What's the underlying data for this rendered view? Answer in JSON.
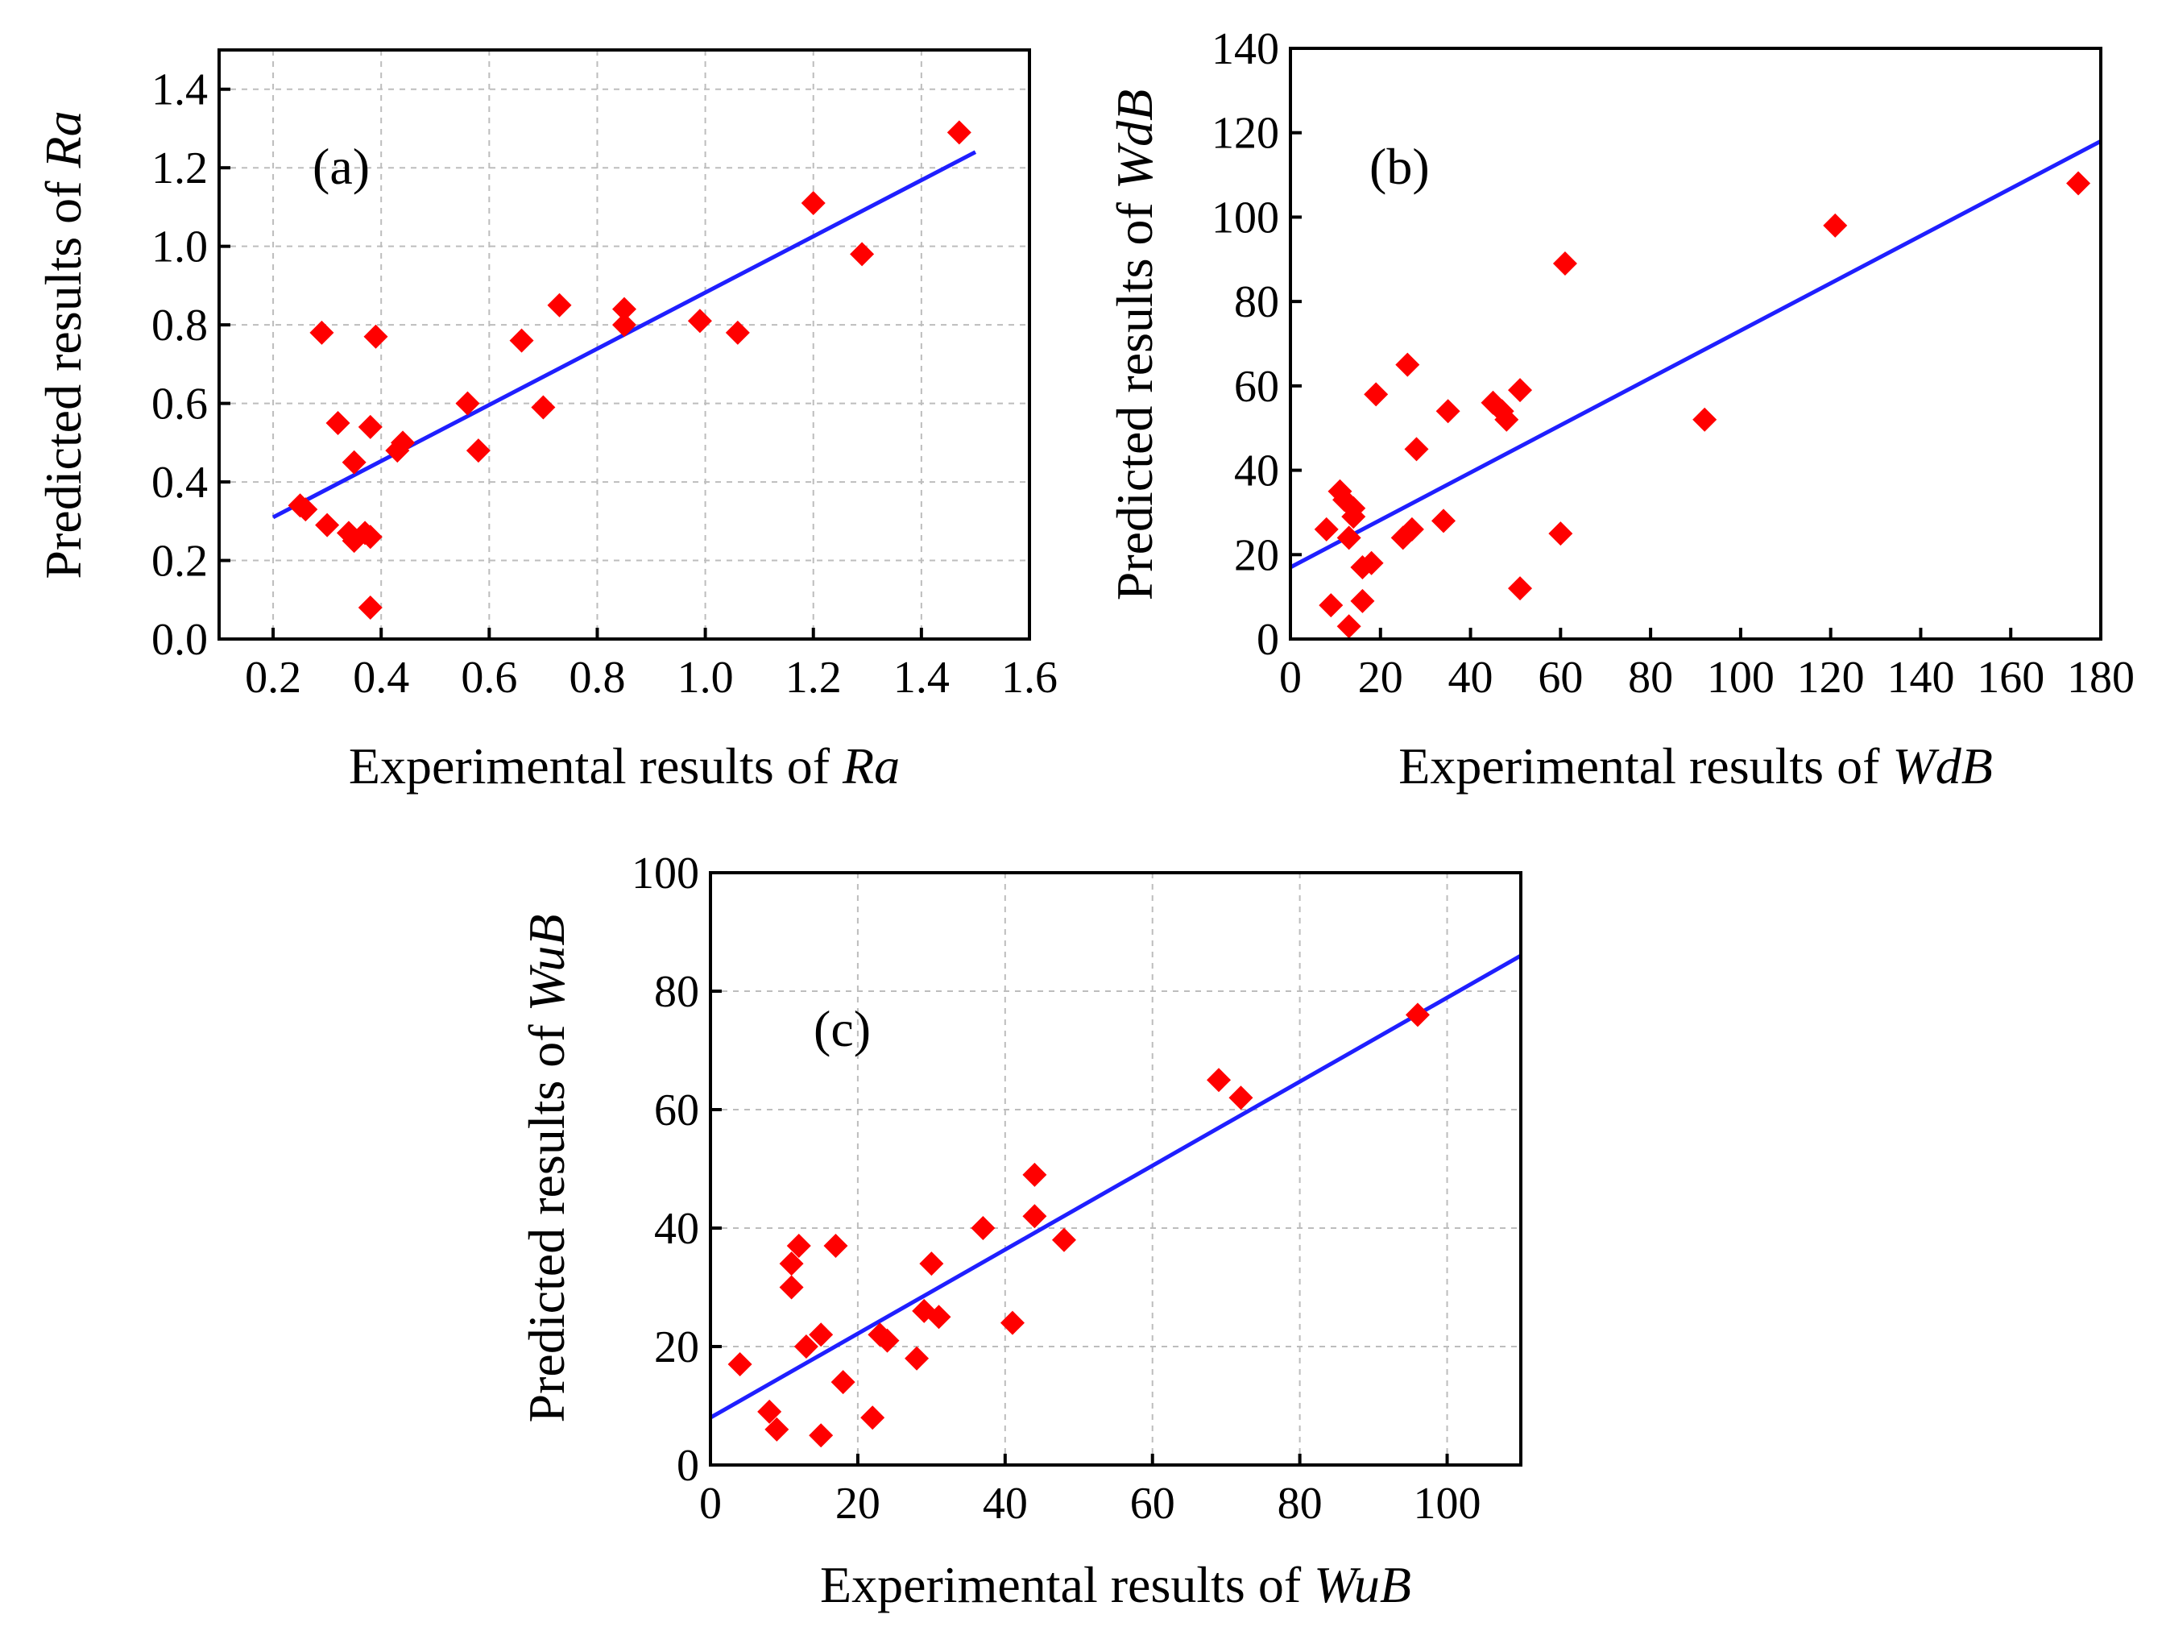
{
  "colors": {
    "marker": "#ff0000",
    "fit_line": "#1f1fff",
    "axes": "#000000",
    "grid": "#bdbdbd"
  },
  "chart_data": [
    {
      "id": "a",
      "type": "scatter",
      "panel_label": "(a)",
      "xlabel_prefix": "Experimental results of ",
      "xlabel_var": "Ra",
      "ylabel_prefix": "Predicted results of ",
      "ylabel_var": "Ra",
      "xlim": [
        0.1,
        1.6
      ],
      "ylim": [
        0.0,
        1.5
      ],
      "xticks": [
        0.2,
        0.4,
        0.6,
        0.8,
        1.0,
        1.2,
        1.4,
        1.6
      ],
      "xtick_labels": [
        "0.2",
        "0.4",
        "0.6",
        "0.8",
        "1.0",
        "1.2",
        "1.4",
        "1.6"
      ],
      "yticks": [
        0.0,
        0.2,
        0.4,
        0.6,
        0.8,
        1.0,
        1.2,
        1.4
      ],
      "ytick_labels": [
        "0.0",
        "0.2",
        "0.4",
        "0.6",
        "0.8",
        "1.0",
        "1.2",
        "1.4"
      ],
      "grid": true,
      "points": [
        [
          0.25,
          0.34
        ],
        [
          0.26,
          0.33
        ],
        [
          0.29,
          0.78
        ],
        [
          0.3,
          0.29
        ],
        [
          0.32,
          0.55
        ],
        [
          0.34,
          0.27
        ],
        [
          0.35,
          0.25
        ],
        [
          0.35,
          0.45
        ],
        [
          0.37,
          0.27
        ],
        [
          0.38,
          0.26
        ],
        [
          0.38,
          0.54
        ],
        [
          0.38,
          0.08
        ],
        [
          0.39,
          0.77
        ],
        [
          0.43,
          0.48
        ],
        [
          0.44,
          0.5
        ],
        [
          0.56,
          0.6
        ],
        [
          0.58,
          0.48
        ],
        [
          0.66,
          0.76
        ],
        [
          0.7,
          0.59
        ],
        [
          0.73,
          0.85
        ],
        [
          0.85,
          0.84
        ],
        [
          0.85,
          0.8
        ],
        [
          0.99,
          0.81
        ],
        [
          1.06,
          0.78
        ],
        [
          1.2,
          1.11
        ],
        [
          1.29,
          0.98
        ],
        [
          1.47,
          1.29
        ]
      ],
      "fit": {
        "x": [
          0.2,
          1.5
        ],
        "y": [
          0.31,
          1.24
        ]
      }
    },
    {
      "id": "b",
      "type": "scatter",
      "panel_label": "(b)",
      "xlabel_prefix": "Experimental results of ",
      "xlabel_var": "WdB",
      "ylabel_prefix": "Predicted results of ",
      "ylabel_var": "WdB",
      "xlim": [
        0,
        180
      ],
      "ylim": [
        0,
        140
      ],
      "xticks": [
        0,
        20,
        40,
        60,
        80,
        100,
        120,
        140,
        160,
        180
      ],
      "xtick_labels": [
        "0",
        "20",
        "40",
        "60",
        "80",
        "100",
        "120",
        "140",
        "160",
        "180"
      ],
      "yticks": [
        0,
        20,
        40,
        60,
        80,
        100,
        120,
        140
      ],
      "ytick_labels": [
        "0",
        "20",
        "40",
        "60",
        "80",
        "100",
        "120",
        "140"
      ],
      "grid": false,
      "points": [
        [
          8,
          26
        ],
        [
          9,
          8
        ],
        [
          11,
          35
        ],
        [
          12,
          33
        ],
        [
          13,
          3
        ],
        [
          13,
          24
        ],
        [
          14,
          29
        ],
        [
          14,
          31
        ],
        [
          16,
          9
        ],
        [
          16,
          17
        ],
        [
          18,
          18
        ],
        [
          19,
          58
        ],
        [
          25,
          24
        ],
        [
          26,
          65
        ],
        [
          27,
          26
        ],
        [
          28,
          45
        ],
        [
          34,
          28
        ],
        [
          35,
          54
        ],
        [
          45,
          56
        ],
        [
          47,
          54
        ],
        [
          48,
          52
        ],
        [
          51,
          59
        ],
        [
          51,
          12
        ],
        [
          60,
          25
        ],
        [
          61,
          89
        ],
        [
          92,
          52
        ],
        [
          121,
          98
        ],
        [
          175,
          108
        ]
      ],
      "fit": {
        "x": [
          0,
          180
        ],
        "y": [
          17,
          118
        ]
      }
    },
    {
      "id": "c",
      "type": "scatter",
      "panel_label": "(c)",
      "xlabel_prefix": "Experimental results of ",
      "xlabel_var": "WuB",
      "ylabel_prefix": "Predicted results of ",
      "ylabel_var": "WuB",
      "xlim": [
        0,
        110
      ],
      "ylim": [
        0,
        100
      ],
      "xticks": [
        0,
        20,
        40,
        60,
        80,
        100
      ],
      "xtick_labels": [
        "0",
        "20",
        "40",
        "60",
        "80",
        "100"
      ],
      "yticks": [
        0,
        20,
        40,
        60,
        80,
        100
      ],
      "ytick_labels": [
        "0",
        "20",
        "40",
        "60",
        "80",
        "100"
      ],
      "grid": true,
      "points": [
        [
          4,
          17
        ],
        [
          8,
          9
        ],
        [
          9,
          6
        ],
        [
          11,
          30
        ],
        [
          11,
          34
        ],
        [
          12,
          37
        ],
        [
          13,
          20
        ],
        [
          15,
          5
        ],
        [
          15,
          22
        ],
        [
          17,
          37
        ],
        [
          18,
          14
        ],
        [
          22,
          8
        ],
        [
          23,
          22
        ],
        [
          24,
          21
        ],
        [
          28,
          18
        ],
        [
          29,
          26
        ],
        [
          30,
          34
        ],
        [
          31,
          25
        ],
        [
          37,
          40
        ],
        [
          41,
          24
        ],
        [
          44,
          42
        ],
        [
          44,
          49
        ],
        [
          48,
          38
        ],
        [
          69,
          65
        ],
        [
          72,
          62
        ],
        [
          96,
          76
        ]
      ],
      "fit": {
        "x": [
          0,
          110
        ],
        "y": [
          8,
          86
        ]
      }
    }
  ]
}
